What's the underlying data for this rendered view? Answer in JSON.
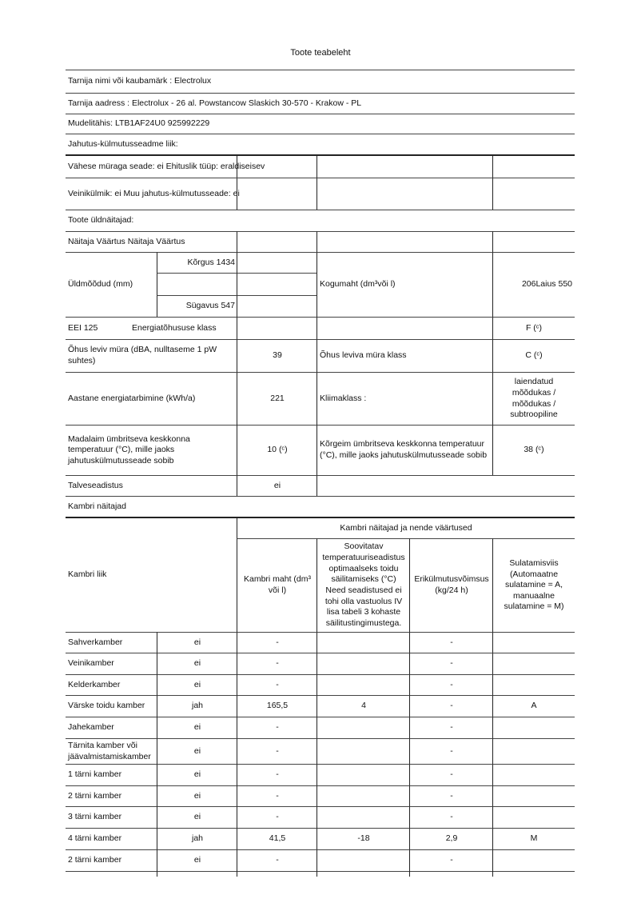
{
  "title": "Toote teabeleht",
  "info": {
    "supplier": "Tarnija nimi või kaubamärk : Electrolux",
    "address": "Tarnija aadress : Electrolux - 26 al. Powstancow Slaskich 30-570 - Krakow - PL",
    "model": "Mudelitähis: LTB1AF24U0 925992229",
    "type_label": "Jahutus-külmutusseadme liik:",
    "low_noise": "Vähese müraga seade: ei Ehituslik tüüp: eraldiseisev",
    "wine": "Veinikülmik: ei Muu jahutus-külmutusseade: ei"
  },
  "general": {
    "section": "Toote üldnäitajad:",
    "header": "Näitaja Väärtus Näitaja Väärtus",
    "dimensions_label": "Üldmõõdud (mm)",
    "height": "Kõrgus 1434",
    "depth": "Sügavus 547",
    "total_volume_label": "Kogumaht (dm³või l)",
    "total_volume_value": "206Laius 550",
    "eei": "EEI 125",
    "energy_class_label": "Energiatõhususe klass",
    "energy_class_value": "F (ᶜ)",
    "noise_label": "Õhus leviv müra (dBA, nulltaseme 1 pW suhtes)",
    "noise_value": "39",
    "noise_class_label": "Õhus leviva müra klass",
    "noise_class_value": "C (ᶜ)",
    "annual_energy_label": "Aastane energiatarbimine (kWh/a)",
    "annual_energy_value": "221",
    "climate_label": "Kliimaklass :",
    "climate_value": "laiendatud\nmõõdukas /\nmõõdukas /\nsubtroopiline",
    "min_temp_label": "Madalaim ümbritseva keskkonna temperatuur (°C), mille jaoks jahutuskülmutusseade sobib",
    "min_temp_value": "10 (ᶜ)",
    "max_temp_label": "Kõrgeim ümbritseva keskkonna temperatuur (°C), mille jaoks jahutuskülmutusseade sobib",
    "max_temp_value": "38 (ᶜ)",
    "winter_label": "Talveseadistus",
    "winter_value": "ei"
  },
  "compartments": {
    "section": "Kambri näitajad",
    "type_header": "Kambri liik",
    "group_header": "Kambri näitajad ja nende väärtused",
    "col_volume": "Kambri maht (dm³\nvõi l)",
    "col_temp": "Soovitatav\ntemperatuuriseadistus\noptimaalseks toidu\nsäilitamiseks (°C)\nNeed seadistused ei\ntohi olla vastuolus IV\nlisa tabeli 3 kohaste\nsäilitustingimustega.",
    "col_capacity": "Erikülmutusvõimsus\n(kg/24 h)",
    "col_defrost": "Sulatamisviis\n(Automaatne\nsulatamine = A,\nmanuaalne\nsulatamine = M)",
    "rows": [
      {
        "name": "Sahverkamber",
        "present": "ei",
        "volume": "-",
        "temp": "",
        "capacity": "-",
        "defrost": ""
      },
      {
        "name": "Veinikamber",
        "present": "ei",
        "volume": "-",
        "temp": "",
        "capacity": "-",
        "defrost": ""
      },
      {
        "name": "Kelderkamber",
        "present": "ei",
        "volume": "-",
        "temp": "",
        "capacity": "-",
        "defrost": ""
      },
      {
        "name": "Värske toidu kamber",
        "present": "jah",
        "volume": "165,5",
        "temp": "4",
        "capacity": "-",
        "defrost": "A"
      },
      {
        "name": "Jahekamber",
        "present": "ei",
        "volume": "-",
        "temp": "",
        "capacity": "-",
        "defrost": ""
      },
      {
        "name": "Tärnita kamber või jäävalmistamiskamber",
        "present": "ei",
        "volume": "-",
        "temp": "",
        "capacity": "-",
        "defrost": ""
      },
      {
        "name": "1 tärni kamber",
        "present": "ei",
        "volume": "-",
        "temp": "",
        "capacity": "-",
        "defrost": ""
      },
      {
        "name": "2 tärni kamber",
        "present": "ei",
        "volume": "-",
        "temp": "",
        "capacity": "-",
        "defrost": ""
      },
      {
        "name": "3 tärni kamber",
        "present": "ei",
        "volume": "-",
        "temp": "",
        "capacity": "-",
        "defrost": ""
      },
      {
        "name": "4 tärni kamber",
        "present": "jah",
        "volume": "41,5",
        "temp": "-18",
        "capacity": "2,9",
        "defrost": "M"
      },
      {
        "name": "2 tärni kamber",
        "present": "ei",
        "volume": "-",
        "temp": "",
        "capacity": "-",
        "defrost": ""
      }
    ]
  }
}
